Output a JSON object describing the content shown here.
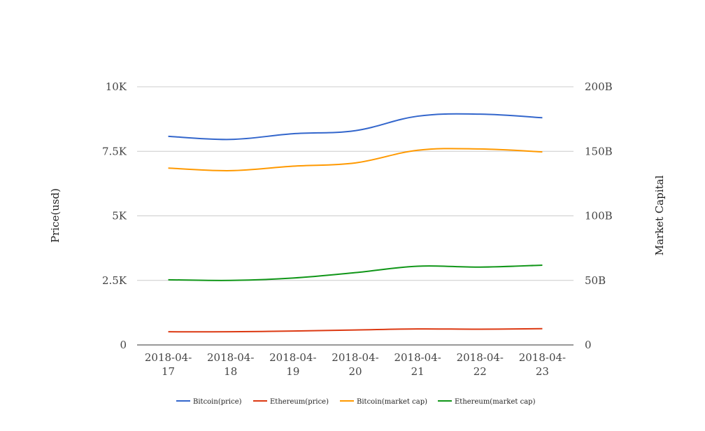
{
  "chart_data": {
    "type": "line",
    "title": "",
    "xlabel": "",
    "ylabel_left": "Price(usd)",
    "ylabel_right": "Market Capital",
    "categories": [
      [
        "2018-04-",
        "17"
      ],
      [
        "2018-04-",
        "18"
      ],
      [
        "2018-04-",
        "19"
      ],
      [
        "2018-04-",
        "20"
      ],
      [
        "2018-04-",
        "21"
      ],
      [
        "2018-04-",
        "22"
      ],
      [
        "2018-04-",
        "23"
      ]
    ],
    "y_left": {
      "ticks": [
        "0",
        "2.5K",
        "5K",
        "7.5K",
        "10K"
      ],
      "range": [
        0,
        10000
      ]
    },
    "y_right": {
      "ticks": [
        "0",
        "50B",
        "100B",
        "150B",
        "200B"
      ],
      "range": [
        0,
        200000000000
      ]
    },
    "grid": true,
    "legend_position": "bottom",
    "series": [
      {
        "name": "Bitcoin(price)",
        "axis": "left",
        "color": "#3366cc",
        "values": [
          8080,
          7960,
          8180,
          8300,
          8860,
          8940,
          8800
        ]
      },
      {
        "name": "Ethereum(price)",
        "axis": "left",
        "color": "#dc3912",
        "values": [
          510,
          510,
          540,
          580,
          620,
          610,
          630
        ]
      },
      {
        "name": "Bitcoin(market cap)",
        "axis": "right",
        "color": "#ff9900",
        "values": [
          137000000000,
          135000000000,
          138500000000,
          141000000000,
          150800000000,
          151800000000,
          149500000000
        ]
      },
      {
        "name": "Ethereum(market cap)",
        "axis": "right",
        "color": "#109618",
        "values": [
          50500000000,
          50000000000,
          51800000000,
          56000000000,
          61000000000,
          60300000000,
          61800000000
        ]
      }
    ]
  }
}
